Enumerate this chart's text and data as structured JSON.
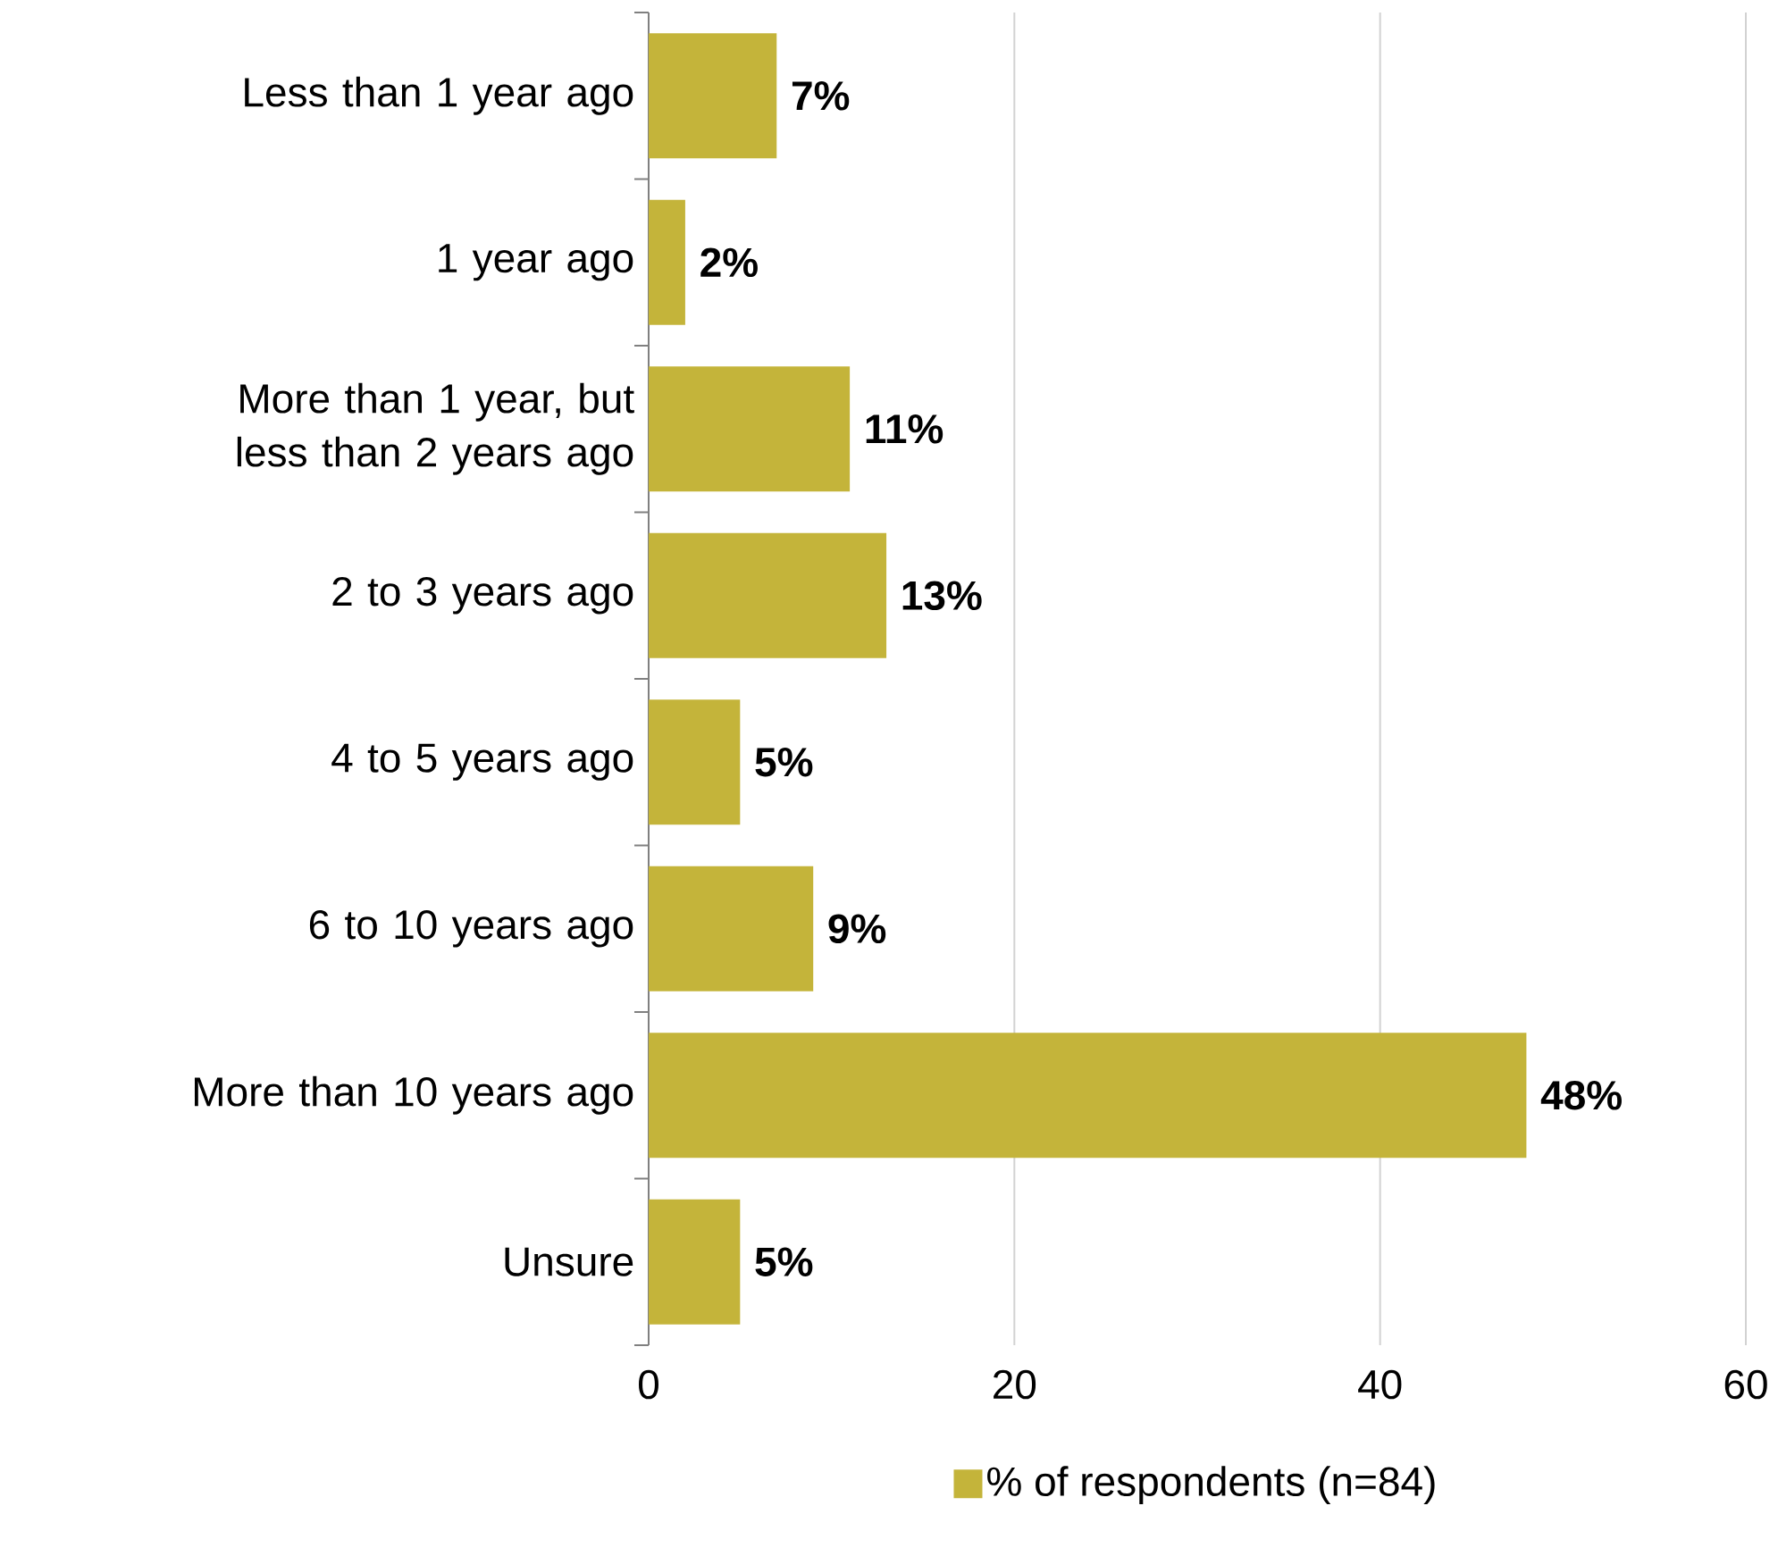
{
  "chart_data": {
    "type": "bar",
    "orientation": "horizontal",
    "categories": [
      "Less than 1 year ago",
      "1 year ago",
      "More than 1 year, but less than 2 years ago",
      "2 to 3 years ago",
      "4 to 5 years ago",
      "6 to 10 years ago",
      "More than 10 years ago",
      "Unsure"
    ],
    "series": [
      {
        "name": "% of respondents (n=84)",
        "color": "#c4b43a",
        "values": [
          7,
          2,
          11,
          13,
          5,
          9,
          48,
          5
        ],
        "value_labels": [
          "7%",
          "2%",
          "11%",
          "13%",
          "5%",
          "9%",
          "48%",
          "5%"
        ]
      }
    ],
    "xlim": [
      0,
      60
    ],
    "xticks": [
      0,
      20,
      40,
      60
    ],
    "grid": "x",
    "legend": "bottom"
  }
}
